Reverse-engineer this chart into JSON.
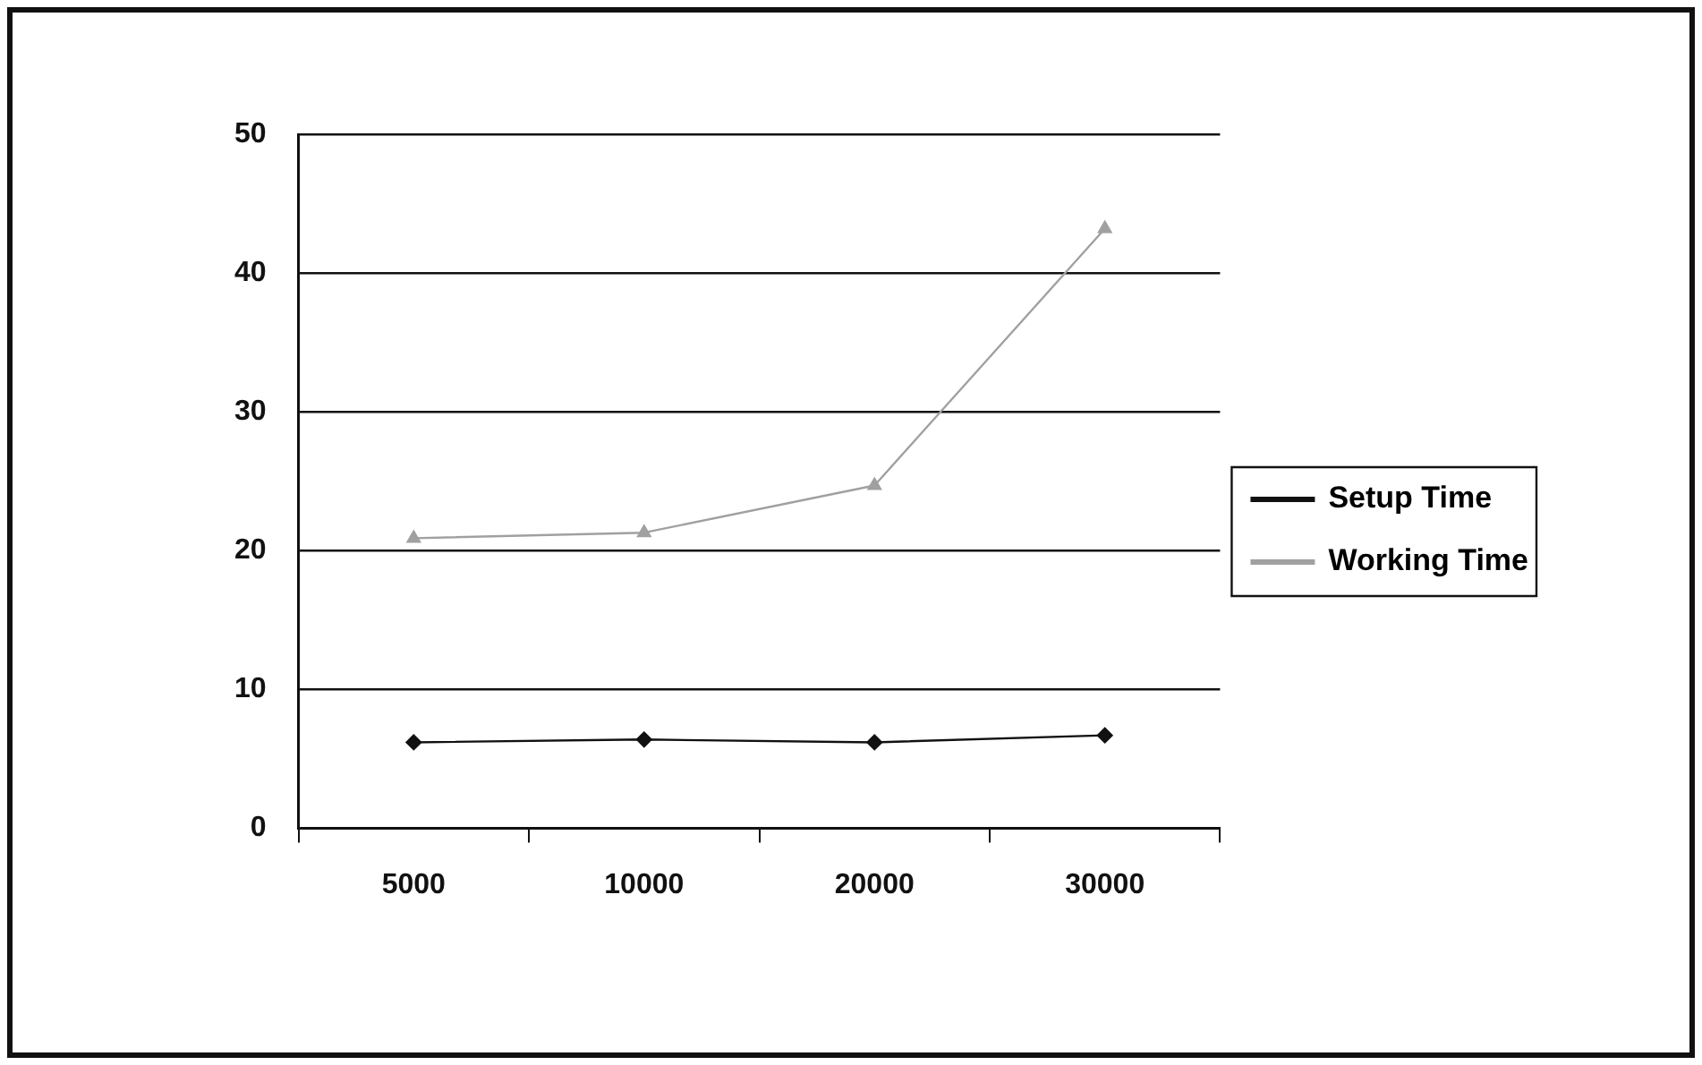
{
  "chart_data": {
    "type": "line",
    "categories": [
      "5000",
      "10000",
      "20000",
      "30000"
    ],
    "series": [
      {
        "name": "Setup Time",
        "color": "#111111",
        "marker": "diamond",
        "values": [
          6.2,
          6.4,
          6.2,
          6.7
        ]
      },
      {
        "name": "Working Time",
        "color": "#a0a0a0",
        "marker": "triangle",
        "values": [
          20.9,
          21.3,
          24.7,
          43.2
        ]
      }
    ],
    "ylim": [
      0,
      50
    ],
    "yticks": [
      0,
      10,
      20,
      30,
      40,
      50
    ],
    "grid": "y",
    "legend": "right",
    "line_style": "solid"
  }
}
